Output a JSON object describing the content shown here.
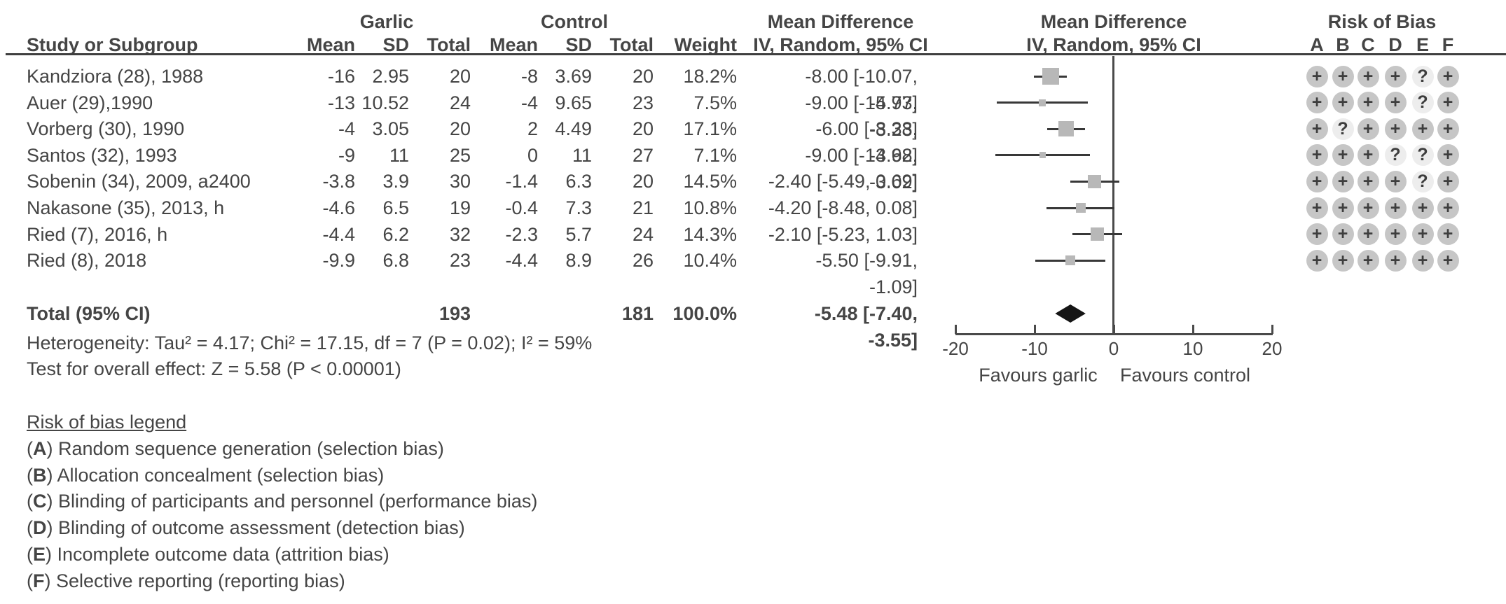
{
  "header": {
    "garlic_group": "Garlic",
    "control_group": "Control",
    "study_col": "Study or Subgroup",
    "mean_col": "Mean",
    "sd_col": "SD",
    "total_col": "Total",
    "weight_col": "Weight",
    "md_text_title": "Mean Difference",
    "md_text_sub": "IV, Random, 95% CI",
    "md_plot_title": "Mean Difference",
    "md_plot_sub": "IV, Random, 95% CI",
    "rob_title": "Risk of Bias",
    "rob_cols": [
      "A",
      "B",
      "C",
      "D",
      "E",
      "F"
    ]
  },
  "footer": {
    "heterogeneity": "Heterogeneity: Tau² = 4.17; Chi² = 17.15, df = 7 (P = 0.02); I² = 59%",
    "overall_effect": "Test for overall effect: Z = 5.58 (P < 0.00001)"
  },
  "legend": {
    "title": "Risk of bias legend",
    "items": [
      {
        "key": "A",
        "text": "Random sequence generation (selection bias)"
      },
      {
        "key": "B",
        "text": "Allocation concealment (selection bias)"
      },
      {
        "key": "C",
        "text": "Blinding of participants and personnel (performance bias)"
      },
      {
        "key": "D",
        "text": "Blinding of outcome assessment (detection bias)"
      },
      {
        "key": "E",
        "text": "Incomplete outcome data (attrition bias)"
      },
      {
        "key": "F",
        "text": "Selective reporting (reporting bias)"
      }
    ]
  },
  "colors": {
    "text": "#454545",
    "rule": "#3f3f3f",
    "ci_line": "#383838",
    "square": "#b8b8b8",
    "diamond": "#151515",
    "rob_plus_bg": "#c6c6c6",
    "rob_question_bg": "#ededed",
    "rob_symbol": "#3e3e3e"
  },
  "chart_data": {
    "type": "forest",
    "effect_measure": "Mean Difference",
    "model": "IV, Random, 95% CI",
    "studies": [
      {
        "name": "Kandziora (28), 1988",
        "g_mean": "-16",
        "g_sd": "2.95",
        "g_total": "20",
        "c_mean": "-8",
        "c_sd": "3.69",
        "c_total": "20",
        "weight": "18.2%",
        "weight_pct": 18.2,
        "md": -8.0,
        "ci_low": -10.07,
        "ci_high": -5.93,
        "md_label": "-8.00 [-10.07, -5.93]",
        "risk_of_bias": [
          "+",
          "+",
          "+",
          "+",
          "?",
          "+"
        ]
      },
      {
        "name": "Auer (29),1990",
        "g_mean": "-13",
        "g_sd": "10.52",
        "g_total": "24",
        "c_mean": "-4",
        "c_sd": "9.65",
        "c_total": "23",
        "weight": "7.5%",
        "weight_pct": 7.5,
        "md": -9.0,
        "ci_low": -14.77,
        "ci_high": -3.23,
        "md_label": "-9.00 [-14.77, -3.23]",
        "risk_of_bias": [
          "+",
          "+",
          "+",
          "+",
          "?",
          "+"
        ]
      },
      {
        "name": "Vorberg (30), 1990",
        "g_mean": "-4",
        "g_sd": "3.05",
        "g_total": "20",
        "c_mean": "2",
        "c_sd": "4.49",
        "c_total": "20",
        "weight": "17.1%",
        "weight_pct": 17.1,
        "md": -6.0,
        "ci_low": -8.38,
        "ci_high": -3.62,
        "md_label": "-6.00 [-8.38, -3.62]",
        "risk_of_bias": [
          "+",
          "?",
          "+",
          "+",
          "+",
          "+"
        ]
      },
      {
        "name": "Santos (32), 1993",
        "g_mean": "-9",
        "g_sd": "11",
        "g_total": "25",
        "c_mean": "0",
        "c_sd": "11",
        "c_total": "27",
        "weight": "7.1%",
        "weight_pct": 7.1,
        "md": -9.0,
        "ci_low": -14.98,
        "ci_high": -3.02,
        "md_label": "-9.00 [-14.98, -3.02]",
        "risk_of_bias": [
          "+",
          "+",
          "+",
          "?",
          "?",
          "+"
        ]
      },
      {
        "name": "Sobenin (34), 2009, a2400",
        "g_mean": "-3.8",
        "g_sd": "3.9",
        "g_total": "30",
        "c_mean": "-1.4",
        "c_sd": "6.3",
        "c_total": "20",
        "weight": "14.5%",
        "weight_pct": 14.5,
        "md": -2.4,
        "ci_low": -5.49,
        "ci_high": 0.69,
        "md_label": "-2.40 [-5.49, 0.69]",
        "risk_of_bias": [
          "+",
          "+",
          "+",
          "+",
          "?",
          "+"
        ]
      },
      {
        "name": "Nakasone (35), 2013, h",
        "g_mean": "-4.6",
        "g_sd": "6.5",
        "g_total": "19",
        "c_mean": "-0.4",
        "c_sd": "7.3",
        "c_total": "21",
        "weight": "10.8%",
        "weight_pct": 10.8,
        "md": -4.2,
        "ci_low": -8.48,
        "ci_high": 0.08,
        "md_label": "-4.20 [-8.48, 0.08]",
        "risk_of_bias": [
          "+",
          "+",
          "+",
          "+",
          "+",
          "+"
        ]
      },
      {
        "name": "Ried (7), 2016, h",
        "g_mean": "-4.4",
        "g_sd": "6.2",
        "g_total": "32",
        "c_mean": "-2.3",
        "c_sd": "5.7",
        "c_total": "24",
        "weight": "14.3%",
        "weight_pct": 14.3,
        "md": -2.1,
        "ci_low": -5.23,
        "ci_high": 1.03,
        "md_label": "-2.10 [-5.23, 1.03]",
        "risk_of_bias": [
          "+",
          "+",
          "+",
          "+",
          "+",
          "+"
        ]
      },
      {
        "name": "Ried (8), 2018",
        "g_mean": "-9.9",
        "g_sd": "6.8",
        "g_total": "23",
        "c_mean": "-4.4",
        "c_sd": "8.9",
        "c_total": "26",
        "weight": "10.4%",
        "weight_pct": 10.4,
        "md": -5.5,
        "ci_low": -9.91,
        "ci_high": -1.09,
        "md_label": "-5.50 [-9.91, -1.09]",
        "risk_of_bias": [
          "+",
          "+",
          "+",
          "+",
          "+",
          "+"
        ]
      }
    ],
    "total": {
      "label": "Total (95% CI)",
      "g_total": "193",
      "c_total": "181",
      "weight": "100.0%",
      "md": -5.48,
      "ci_low": -7.4,
      "ci_high": -3.55,
      "md_label": "-5.48 [-7.40, -3.55]"
    },
    "axis": {
      "min": -20,
      "max": 20,
      "ticks": [
        -20,
        -10,
        0,
        10,
        20
      ],
      "favours_left": "Favours garlic",
      "favours_right": "Favours control"
    }
  }
}
